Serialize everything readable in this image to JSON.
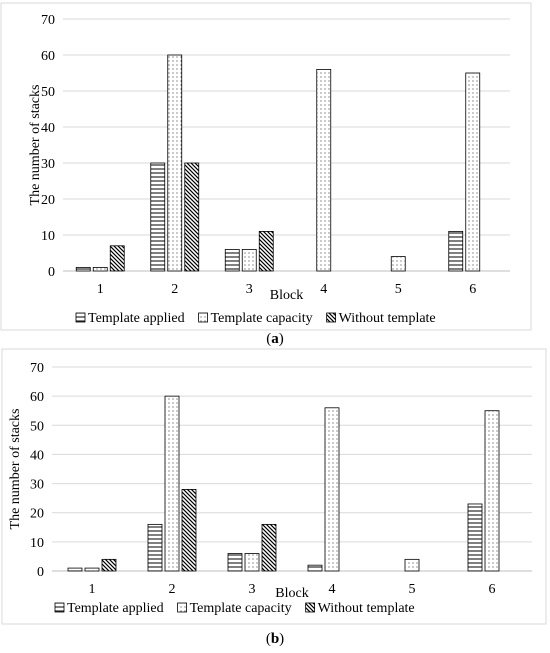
{
  "chart_data": [
    {
      "type": "bar",
      "panel_label": "a",
      "categories": [
        "1",
        "2",
        "3",
        "4",
        "5",
        "6"
      ],
      "series": [
        {
          "name": "Template applied",
          "pattern": "horizontal-lines",
          "values": [
            1,
            30,
            6,
            0,
            0,
            11
          ]
        },
        {
          "name": "Template capacity",
          "pattern": "dots",
          "values": [
            1,
            60,
            6,
            56,
            4,
            55
          ]
        },
        {
          "name": "Without template",
          "pattern": "diagonal-lines",
          "values": [
            7,
            30,
            11,
            0,
            0,
            0
          ]
        }
      ],
      "xlabel": "Block",
      "ylabel": "The number of stacks",
      "ylim": [
        0,
        70
      ],
      "yticks": [
        "0",
        "10",
        "20",
        "30",
        "40",
        "50",
        "60",
        "70"
      ],
      "grid": true,
      "legend_position": "bottom"
    },
    {
      "type": "bar",
      "panel_label": "b",
      "categories": [
        "1",
        "2",
        "3",
        "4",
        "5",
        "6"
      ],
      "series": [
        {
          "name": "Template applied",
          "pattern": "horizontal-lines",
          "values": [
            1,
            16,
            6,
            2,
            0,
            23
          ]
        },
        {
          "name": "Template capacity",
          "pattern": "dots",
          "values": [
            1,
            60,
            6,
            56,
            4,
            55
          ]
        },
        {
          "name": "Without template",
          "pattern": "diagonal-lines",
          "values": [
            4,
            28,
            16,
            0,
            0,
            0
          ]
        }
      ],
      "xlabel": "Block",
      "ylabel": "The number of stacks",
      "ylim": [
        0,
        70
      ],
      "yticks": [
        "0",
        "10",
        "20",
        "30",
        "40",
        "50",
        "60",
        "70"
      ],
      "grid": true,
      "legend_position": "bottom"
    }
  ],
  "colors": {
    "grid": "#d9d9d9",
    "bar_stroke": "#000000",
    "frame": "#d9d9d9"
  }
}
